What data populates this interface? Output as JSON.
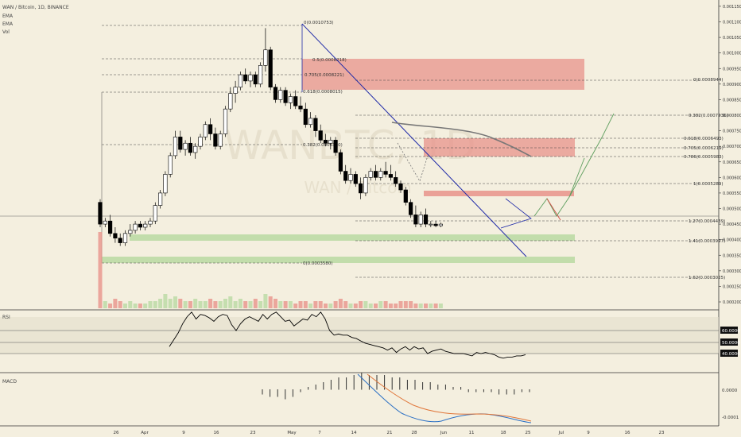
{
  "header": {
    "title": "WAN / Bitcoin, 1D, BINANCE",
    "indicators": [
      "EMA",
      "EMA",
      "Vol"
    ]
  },
  "watermark": {
    "symbol": "WANBTC, 1D",
    "name": "WAN / Bitcoin"
  },
  "colors": {
    "background": "#f4efdf",
    "up": "#ffffff",
    "down": "#000000",
    "trendline": "#1f2aa8",
    "resistance_zone": "#e8938b",
    "support_zone": "#b9d9a2",
    "ema": "#777777",
    "macd": "#2a6fc4",
    "signal": "#e0763a",
    "arrow_green": "#5f9f5f",
    "arrow_red": "#d24b43"
  },
  "price_axis": {
    "ticks": [
      "0.0011500",
      "0.0011000",
      "0.0010500",
      "0.0010000",
      "0.0009500",
      "0.0009000",
      "0.0008500",
      "0.0008000",
      "0.0007500",
      "0.0007000",
      "0.0006500",
      "0.0006000",
      "0.0005500",
      "0.0005000",
      "0.0004500",
      "0.0004000",
      "0.0003500",
      "0.0003000",
      "0.0002500",
      "0.0002000"
    ]
  },
  "x_axis": {
    "ticks": [
      "26",
      "Apr",
      "9",
      "16",
      "23",
      "May",
      "7",
      "14",
      "21",
      "28",
      "Jun",
      "11",
      "18",
      "25",
      "Jul",
      "9",
      "16",
      "23"
    ]
  },
  "fib_labels": [
    "0(0.0010753)",
    "0.5(0.0008218)",
    "0.705(0.0008221)",
    "0.618(0.0008015)",
    "0(0.0008944)",
    "0.382(0.0007236)",
    "0.382(0.0006320)",
    "0.618(0.0006493)",
    "0.705(0.0006219)",
    "0.786(0.0005983)",
    "1(0.0005289)",
    "1.27(0.0004439)",
    "1.41(0.0003997)",
    "0(0.0003580)",
    "1.62(0.0003025)"
  ],
  "rsi": {
    "label": "RSI",
    "levels": [
      "60.0000",
      "50.0000",
      "40.0000"
    ]
  },
  "macd": {
    "label": "MACD",
    "ticks": [
      "0.0000",
      "-0.0001"
    ]
  },
  "chart_data": {
    "type": "candlestick",
    "symbol": "WAN / Bitcoin",
    "interval": "1D",
    "exchange": "BINANCE",
    "y_scale": "price (BTC)",
    "ylim": [
      0.0002,
      0.00116
    ],
    "candles": [
      [
        0.00052,
        0.00053,
        0.00044,
        0.00045
      ],
      [
        0.00045,
        0.00047,
        0.00044,
        0.00046
      ],
      [
        0.00046,
        0.00048,
        0.00041,
        0.00042
      ],
      [
        0.00042,
        0.00044,
        0.00039,
        0.000405
      ],
      [
        0.000405,
        0.00042,
        0.00038,
        0.00039
      ],
      [
        0.00039,
        0.00043,
        0.00038,
        0.00042
      ],
      [
        0.00042,
        0.00045,
        0.00041,
        0.00043
      ],
      [
        0.00043,
        0.00046,
        0.00042,
        0.00045
      ],
      [
        0.00045,
        0.00046,
        0.00043,
        0.00044
      ],
      [
        0.00044,
        0.00046,
        0.00043,
        0.00045
      ],
      [
        0.00045,
        0.00047,
        0.00044,
        0.00046
      ],
      [
        0.00046,
        0.00052,
        0.00045,
        0.00051
      ],
      [
        0.00051,
        0.00056,
        0.0005,
        0.00055
      ],
      [
        0.00055,
        0.00062,
        0.00054,
        0.00061
      ],
      [
        0.00061,
        0.00068,
        0.0006,
        0.00067
      ],
      [
        0.00067,
        0.00075,
        0.00066,
        0.00073
      ],
      [
        0.00073,
        0.00075,
        0.00068,
        0.00069
      ],
      [
        0.00069,
        0.00072,
        0.00067,
        0.00071
      ],
      [
        0.00071,
        0.00073,
        0.00067,
        0.00068
      ],
      [
        0.00068,
        0.00071,
        0.00066,
        0.0007
      ],
      [
        0.0007,
        0.00074,
        0.00069,
        0.00073
      ],
      [
        0.00073,
        0.00078,
        0.00072,
        0.00077
      ],
      [
        0.00077,
        0.00079,
        0.00072,
        0.00074
      ],
      [
        0.00074,
        0.00076,
        0.00069,
        0.0007
      ],
      [
        0.0007,
        0.00075,
        0.00069,
        0.00074
      ],
      [
        0.00074,
        0.00083,
        0.00073,
        0.00082
      ],
      [
        0.00082,
        0.00089,
        0.00081,
        0.00087
      ],
      [
        0.00087,
        0.00091,
        0.00084,
        0.00089
      ],
      [
        0.00089,
        0.00094,
        0.00088,
        0.00093
      ],
      [
        0.00093,
        0.00095,
        0.0009,
        0.00091
      ],
      [
        0.00091,
        0.00094,
        0.00089,
        0.00093
      ],
      [
        0.00093,
        0.00094,
        0.00089,
        0.0009
      ],
      [
        0.0009,
        0.00097,
        0.00089,
        0.00096
      ],
      [
        0.00096,
        0.00108,
        0.00094,
        0.00101
      ],
      [
        0.00101,
        0.00102,
        0.00088,
        0.00089
      ],
      [
        0.00089,
        0.0009,
        0.00084,
        0.00085
      ],
      [
        0.00085,
        0.00089,
        0.00084,
        0.00088
      ],
      [
        0.00088,
        0.00089,
        0.00083,
        0.00084
      ],
      [
        0.00084,
        0.00087,
        0.00082,
        0.00086
      ],
      [
        0.00086,
        0.00088,
        0.00082,
        0.00083
      ],
      [
        0.00083,
        0.00086,
        0.00081,
        0.00082
      ],
      [
        0.00082,
        0.00084,
        0.00076,
        0.00077
      ],
      [
        0.00077,
        0.00081,
        0.00076,
        0.00079
      ],
      [
        0.00079,
        0.0008,
        0.00073,
        0.00075
      ],
      [
        0.00075,
        0.00077,
        0.00071,
        0.00072
      ],
      [
        0.00072,
        0.00074,
        0.0007,
        0.00071
      ],
      [
        0.00071,
        0.00073,
        0.00069,
        0.00072
      ],
      [
        0.00072,
        0.00073,
        0.00067,
        0.00068
      ],
      [
        0.00068,
        0.00069,
        0.00061,
        0.00062
      ],
      [
        0.00062,
        0.00064,
        0.00058,
        0.00059
      ],
      [
        0.00059,
        0.00063,
        0.00058,
        0.00061
      ],
      [
        0.00061,
        0.00062,
        0.00057,
        0.00058
      ],
      [
        0.00058,
        0.0006,
        0.00053,
        0.00055
      ],
      [
        0.00055,
        0.00061,
        0.00054,
        0.0006
      ],
      [
        0.0006,
        0.00063,
        0.00059,
        0.00062
      ],
      [
        0.00062,
        0.00064,
        0.00059,
        0.0006
      ],
      [
        0.0006,
        0.00063,
        0.00059,
        0.00062
      ],
      [
        0.00062,
        0.00065,
        0.0006,
        0.00061
      ],
      [
        0.00061,
        0.00064,
        0.00059,
        0.0006
      ],
      [
        0.0006,
        0.00062,
        0.00057,
        0.00058
      ],
      [
        0.00058,
        0.00059,
        0.00055,
        0.00056
      ],
      [
        0.00056,
        0.00057,
        0.00051,
        0.00052
      ],
      [
        0.00052,
        0.00053,
        0.00047,
        0.00048
      ],
      [
        0.00048,
        0.00051,
        0.00044,
        0.00045
      ],
      [
        0.00045,
        0.00049,
        0.00044,
        0.00048
      ],
      [
        0.00048,
        0.0005,
        0.00044,
        0.00045
      ],
      [
        0.00045,
        0.00046,
        0.00044,
        0.00045
      ],
      [
        0.00045,
        0.00046,
        0.00044,
        0.000445
      ],
      [
        0.000445,
        0.000455,
        0.00044,
        0.00045
      ]
    ],
    "volume": [
      9,
      3,
      2,
      4,
      3,
      2,
      3,
      2,
      2,
      2,
      3,
      3,
      4,
      6,
      4,
      5,
      4,
      3,
      3,
      4,
      3,
      3,
      4,
      3,
      3,
      4,
      5,
      3,
      4,
      3,
      3,
      4,
      3,
      6,
      5,
      4,
      3,
      3,
      3,
      2,
      3,
      3,
      2,
      3,
      3,
      2,
      2,
      3,
      4,
      3,
      2,
      2,
      3,
      3,
      2,
      2,
      3,
      3,
      2,
      2,
      3,
      3,
      3,
      2,
      2,
      2,
      2,
      2,
      2
    ],
    "rsi": [
      46,
      52,
      58,
      66,
      72,
      76,
      70,
      74,
      73,
      71,
      68,
      72,
      74,
      73,
      65,
      60,
      66,
      70,
      72,
      70,
      68,
      74,
      70,
      74,
      76,
      72,
      68,
      69,
      64,
      67,
      70,
      69,
      74,
      72,
      76,
      70,
      60,
      56,
      57,
      56,
      56,
      54,
      53,
      51,
      49,
      48,
      47,
      46,
      45,
      43,
      45,
      41,
      44,
      46,
      43,
      46,
      44,
      45,
      40,
      42,
      43,
      44,
      42,
      41,
      40,
      40,
      40,
      39,
      38,
      41,
      40,
      41,
      40,
      39,
      37,
      36,
      37,
      37,
      38,
      38,
      39
    ],
    "macd_hist": [
      2,
      3,
      3,
      4,
      3,
      1,
      -1,
      -2,
      -3,
      -4,
      -5,
      -5,
      -6,
      -7,
      -6,
      -6,
      -6,
      -5,
      -5,
      -4,
      -4,
      -3,
      -3,
      -2,
      -2,
      -1,
      -1,
      1,
      1,
      1,
      1,
      2,
      2,
      2,
      1,
      1
    ]
  }
}
